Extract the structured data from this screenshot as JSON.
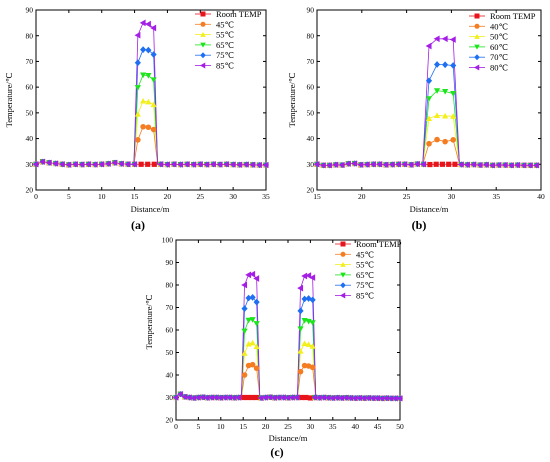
{
  "chart_data": [
    {
      "type": "line",
      "panel_label": "(a)",
      "xlabel": "Distance/m",
      "ylabel": "Temperature/℃",
      "xlim": [
        0,
        35
      ],
      "ylim": [
        20,
        90
      ],
      "xticks": [
        0,
        5,
        10,
        15,
        20,
        25,
        30,
        35
      ],
      "yticks": [
        20,
        30,
        40,
        50,
        60,
        70,
        80,
        90
      ],
      "legend_position": "top-right",
      "base_series": {
        "name": "Room TEMP",
        "x": [
          0,
          1,
          2,
          3,
          4,
          5,
          6,
          7,
          8,
          9,
          10,
          11,
          12,
          13,
          14,
          15,
          16,
          17,
          18,
          19,
          20,
          21,
          22,
          23,
          24,
          25,
          26,
          27,
          28,
          29,
          30,
          31,
          32,
          33,
          34,
          35
        ],
        "y": [
          30,
          31,
          30.6,
          30.3,
          30,
          29.8,
          30,
          29.9,
          30,
          29.9,
          30,
          30.2,
          30.6,
          30.2,
          30,
          30,
          30,
          30,
          30,
          30,
          29.9,
          30,
          29.9,
          30,
          29.9,
          30,
          29.9,
          30,
          29.9,
          30,
          29.9,
          29.8,
          29.9,
          29.8,
          29.7,
          29.7
        ]
      },
      "hot_series": [
        {
          "name": "45℃",
          "x": [
            15.5,
            16.3,
            17.1,
            17.9
          ],
          "y": [
            39.5,
            44.6,
            44.4,
            43.5
          ]
        },
        {
          "name": "55℃",
          "x": [
            15.5,
            16.3,
            17.1,
            17.9
          ],
          "y": [
            49.5,
            54.6,
            54.3,
            53.2
          ]
        },
        {
          "name": "65℃",
          "x": [
            15.5,
            16.3,
            17.1,
            17.9
          ],
          "y": [
            59.8,
            64.7,
            64.5,
            62.8
          ]
        },
        {
          "name": "75℃",
          "x": [
            15.5,
            16.3,
            17.1,
            17.9
          ],
          "y": [
            69.5,
            74.6,
            74.4,
            72.7
          ]
        },
        {
          "name": "85℃",
          "x": [
            15.5,
            16.3,
            17.1,
            17.9
          ],
          "y": [
            80.2,
            85,
            84.5,
            83
          ]
        }
      ],
      "hot_ranges": [
        [
          15.5,
          17.9
        ]
      ],
      "edges": [
        [
          14.9,
          18.5
        ]
      ]
    },
    {
      "type": "line",
      "panel_label": "(b)",
      "xlabel": "Distance/m",
      "ylabel": "Temperature/℃",
      "xlim": [
        15,
        40
      ],
      "ylim": [
        20,
        90
      ],
      "xticks": [
        15,
        20,
        25,
        30,
        35,
        40
      ],
      "yticks": [
        20,
        30,
        40,
        50,
        60,
        70,
        80,
        90
      ],
      "legend_position": "top-right",
      "base_series": {
        "name": "Room TEMP",
        "x": [
          15,
          15.7,
          16.4,
          17.1,
          17.8,
          18.5,
          19.2,
          19.9,
          20.6,
          21.3,
          22,
          22.7,
          23.4,
          24.1,
          24.8,
          25.5,
          26.2,
          26.9,
          27.6,
          28.3,
          29,
          29.7,
          30.4,
          31.1,
          31.8,
          32.5,
          33.2,
          33.9,
          34.6,
          35.3,
          36,
          36.7,
          37.4,
          38.1,
          38.8,
          39.5
        ],
        "y": [
          30,
          29.6,
          29.6,
          29.8,
          29.7,
          30.2,
          30.3,
          29.8,
          29.9,
          30,
          30,
          29.8,
          29.9,
          30,
          30,
          29.8,
          30.1,
          30,
          29.9,
          30,
          30,
          30,
          30,
          29.9,
          29.8,
          29.9,
          29.7,
          29.8,
          29.6,
          29.7,
          29.7,
          29.6,
          29.7,
          29.6,
          29.6,
          29.6
        ]
      },
      "hot_series": [
        {
          "name": "40℃",
          "x": [
            27.5,
            28.4,
            29.3,
            30.2
          ],
          "y": [
            38,
            39.6,
            38.8,
            39.5
          ]
        },
        {
          "name": "50℃",
          "x": [
            27.5,
            28.4,
            29.3,
            30.2
          ],
          "y": [
            47.8,
            49,
            48.8,
            48.7
          ]
        },
        {
          "name": "60℃",
          "x": [
            27.5,
            28.4,
            29.3,
            30.2
          ],
          "y": [
            55.5,
            58.6,
            58.3,
            57.5
          ]
        },
        {
          "name": "70℃",
          "x": [
            27.5,
            28.4,
            29.3,
            30.2
          ],
          "y": [
            62.5,
            68.8,
            68.7,
            68.4
          ]
        },
        {
          "name": "80℃",
          "x": [
            27.5,
            28.4,
            29.3,
            30.2
          ],
          "y": [
            76,
            78.8,
            78.8,
            78.5
          ]
        }
      ],
      "hot_ranges": [
        [
          27.5,
          30.2
        ]
      ],
      "edges": [
        [
          26.8,
          30.9
        ]
      ]
    },
    {
      "type": "line",
      "panel_label": "(c)",
      "xlabel": "Distance/m",
      "ylabel": "Temperature/℃",
      "xlim": [
        0,
        50
      ],
      "ylim": [
        20,
        100
      ],
      "xticks": [
        0,
        5,
        10,
        15,
        20,
        25,
        30,
        35,
        40,
        45,
        50
      ],
      "yticks": [
        20,
        30,
        40,
        50,
        60,
        70,
        80,
        90,
        100
      ],
      "legend_position": "top-right",
      "base_series": {
        "name": "Room TEMP",
        "x": [
          0,
          1,
          2,
          3,
          4,
          5,
          6,
          7,
          8,
          9,
          10,
          11,
          12,
          13,
          14,
          15,
          16,
          17,
          18,
          19,
          20,
          21,
          22,
          23,
          24,
          25,
          26,
          27,
          28,
          29,
          30,
          31,
          32,
          33,
          34,
          35,
          36,
          37,
          38,
          39,
          40,
          41,
          42,
          43,
          44,
          45,
          46,
          47,
          48,
          49,
          50
        ],
        "y": [
          30,
          31.5,
          30.3,
          30,
          29.8,
          30,
          30.1,
          29.9,
          30,
          30,
          29.9,
          30,
          30,
          29.9,
          30,
          30,
          30,
          30,
          30,
          29.8,
          30,
          30.1,
          29.9,
          30,
          30,
          29.9,
          30,
          30,
          30,
          30,
          29.8,
          30,
          29.9,
          30,
          29.9,
          29.8,
          29.9,
          29.8,
          29.9,
          29.8,
          29.7,
          29.8,
          29.7,
          29.8,
          29.7,
          29.7,
          29.6,
          29.7,
          29.6,
          29.6,
          29.6
        ]
      },
      "hot_series": [
        {
          "name": "45℃",
          "x": [
            15.3,
            16.2,
            17.1,
            18,
            27.8,
            28.7,
            29.6,
            30.5
          ],
          "y": [
            40,
            44.2,
            44.6,
            43,
            41.5,
            44.2,
            44,
            43.4
          ]
        },
        {
          "name": "55℃",
          "x": [
            15.3,
            16.2,
            17.1,
            18,
            27.8,
            28.7,
            29.6,
            30.5
          ],
          "y": [
            49.7,
            53.8,
            54.3,
            52.6,
            50.6,
            54,
            53.6,
            52.8
          ]
        },
        {
          "name": "65℃",
          "x": [
            15.3,
            16.2,
            17.1,
            18,
            27.8,
            28.7,
            29.6,
            30.5
          ],
          "y": [
            59.5,
            64.3,
            64.6,
            62.8,
            60.5,
            64.2,
            63.8,
            63.2
          ]
        },
        {
          "name": "75℃",
          "x": [
            15.3,
            16.2,
            17.1,
            18,
            27.8,
            28.7,
            29.6,
            30.5
          ],
          "y": [
            69.5,
            74.2,
            74.5,
            72.4,
            68.5,
            73.8,
            74,
            73.4
          ]
        },
        {
          "name": "85℃",
          "x": [
            15.3,
            16.2,
            17.1,
            18,
            27.8,
            28.7,
            29.6,
            30.5
          ],
          "y": [
            80,
            84.5,
            84.8,
            82.9,
            78.6,
            84,
            84.2,
            83.3
          ]
        }
      ],
      "hot_ranges": [
        [
          15.3,
          18
        ],
        [
          27.8,
          30.5
        ]
      ],
      "edges": [
        [
          14.6,
          18.7
        ],
        [
          27.1,
          31.2
        ]
      ]
    }
  ],
  "series_styles": [
    {
      "color": "#e8141c",
      "marker": "square"
    },
    {
      "color": "#f57d21",
      "marker": "circle"
    },
    {
      "color": "#f2ef1a",
      "marker": "triangle-up"
    },
    {
      "color": "#1be51b",
      "marker": "triangle-down"
    },
    {
      "color": "#1e6ff2",
      "marker": "diamond"
    },
    {
      "color": "#a41ee5",
      "marker": "triangle-left"
    }
  ]
}
